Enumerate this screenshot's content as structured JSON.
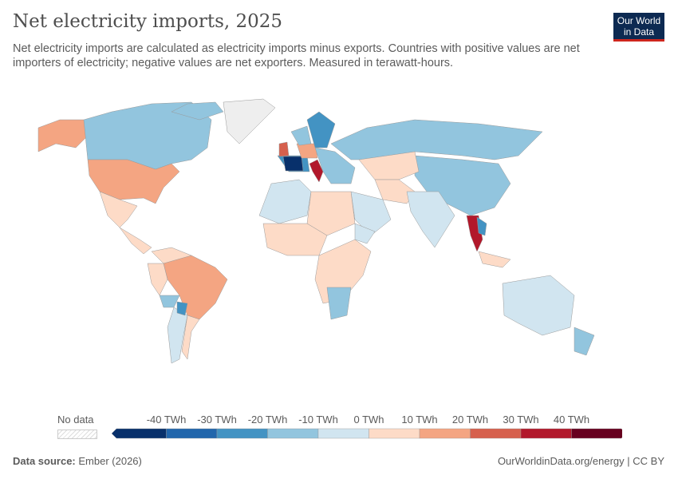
{
  "title": "Net electricity imports, 2025",
  "subtitle": "Net electricity imports are calculated as electricity imports minus exports. Countries with positive values are net importers of electricity; negative values are net exporters. Measured in terawatt-hours.",
  "logo": {
    "line1": "Our World",
    "line2": "in Data"
  },
  "legend": {
    "no_data_label": "No data",
    "ticks": [
      "-40 TWh",
      "-30 TWh",
      "-20 TWh",
      "-10 TWh",
      "0 TWh",
      "10 TWh",
      "20 TWh",
      "30 TWh",
      "40 TWh"
    ],
    "colors": [
      "#08306b",
      "#2166ac",
      "#4393c3",
      "#92c5de",
      "#d1e5f0",
      "#fddbc7",
      "#f4a582",
      "#d6604d",
      "#b2182b",
      "#67001f"
    ],
    "no_data_color": "#eeeeee"
  },
  "footer": {
    "source_label": "Data source:",
    "source": "Ember (2026)",
    "url": "OurWorldinData.org/energy | CC BY"
  }
}
